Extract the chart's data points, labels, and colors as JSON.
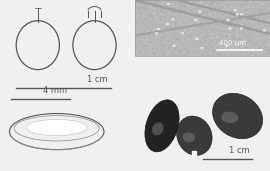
{
  "background_color": "#f0f0f0",
  "line_color": "#555555",
  "font_size": 6,
  "sem_bg": "#aaaaaa",
  "sem_line1": {
    "color": "#888888",
    "lw": 1.2
  },
  "sem_line2": {
    "color": "#888888",
    "lw": 1.0
  },
  "scale_1cm_top": "1 cm",
  "scale_1cm_bot": "1 cm",
  "scale_4mm": "4 mm",
  "scale_sem": "400 μm",
  "seed_dark": "#222222",
  "seed_mid": "#3a3a3a",
  "seed_light": "#4a4a4a",
  "seed_highlight": "#777777"
}
